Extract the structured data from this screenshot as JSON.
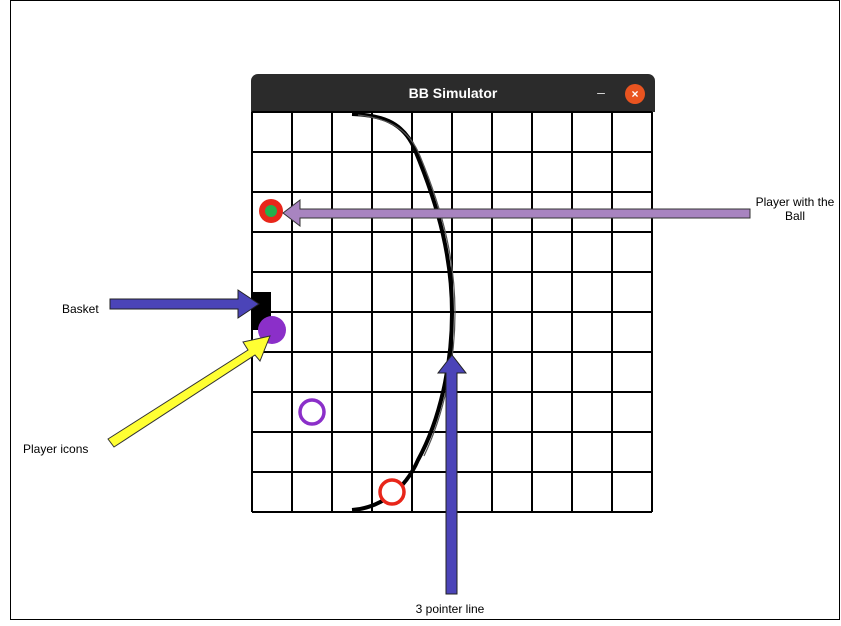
{
  "window": {
    "title": "BB Simulator",
    "minimize_glyph": "–",
    "close_glyph": "×"
  },
  "court": {
    "columns": 10,
    "rows": 10,
    "line_color": "#000000",
    "background": "#ffffff"
  },
  "players": [
    {
      "name": "player-with-ball",
      "ring_color": "#e8261a",
      "fill": "#22b14c",
      "col": 0.5,
      "row": 2.5
    },
    {
      "name": "player-purple-filled",
      "ring_color": "#8b2fc9",
      "fill": "#8b2fc9",
      "col": 0.5,
      "row": 5.5
    },
    {
      "name": "player-purple-ring",
      "ring_color": "#8b2fc9",
      "fill": "none",
      "col": 1.5,
      "row": 7.5
    },
    {
      "name": "player-red-ring",
      "ring_color": "#e8261a",
      "fill": "none",
      "col": 3.5,
      "row": 9.5
    }
  ],
  "annotations": {
    "player_with_ball_line1": "Player with the",
    "player_with_ball_line2": "Ball",
    "basket": "Basket",
    "player_icons": "Player icons",
    "three_pointer": "3 pointer line"
  },
  "colors": {
    "arrow_blue": "#4b44b8",
    "arrow_lavender": "#a884c0",
    "arrow_yellow": "#ffff33",
    "basket": "#000000"
  }
}
